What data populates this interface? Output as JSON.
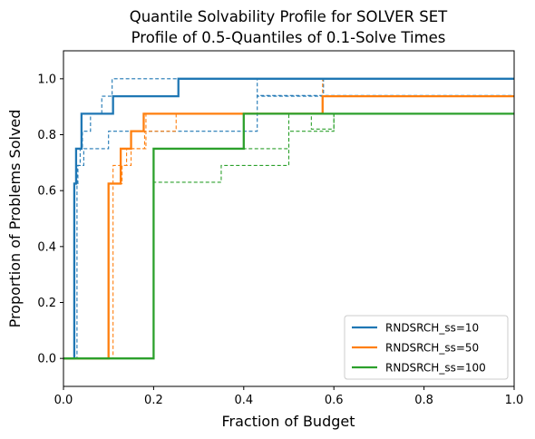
{
  "chart_data": {
    "type": "line",
    "title": "Quantile Solvability Profile for SOLVER SET",
    "subtitle": "Profile of 0.5-Quantiles of 0.1-Solve Times",
    "xlabel": "Fraction of Budget",
    "ylabel": "Proportion of Problems Solved",
    "xlim": [
      0,
      1
    ],
    "ylim": [
      -0.1,
      1.1
    ],
    "xticks": [
      0,
      0.2,
      0.4,
      0.6,
      0.8,
      1.0
    ],
    "xtick_labels": [
      "0.0",
      "0.2",
      "0.4",
      "0.6",
      "0.8",
      "1.0"
    ],
    "yticks": [
      0,
      0.2,
      0.4,
      0.6,
      0.8,
      1.0
    ],
    "ytick_labels": [
      "0.0",
      "0.2",
      "0.4",
      "0.6",
      "0.8",
      "1.0"
    ],
    "grid": false,
    "legend_position": "lower-right",
    "step": true,
    "series": [
      {
        "name": "RNDSRCH_ss=10",
        "color": "#1f77b4",
        "style": "solid",
        "x": [
          0,
          0.024,
          0.028,
          0.04,
          0.11,
          0.255,
          1.0
        ],
        "y": [
          0,
          0.625,
          0.75,
          0.875,
          0.9375,
          1.0,
          1.0
        ]
      },
      {
        "name": "",
        "color": "#1f77b4",
        "style": "dashed",
        "x": [
          0,
          0.024,
          0.032,
          0.037,
          0.042,
          0.06,
          0.065,
          0.085,
          0.108,
          0.43,
          0.577,
          1.0
        ],
        "y": [
          0,
          0.625,
          0.69,
          0.75,
          0.8125,
          0.875,
          0.875,
          0.9375,
          1.0,
          0.9375,
          1.0,
          1.0
        ]
      },
      {
        "name": "",
        "color": "#1f77b4",
        "style": "dashed",
        "x": [
          0,
          0.03,
          0.045,
          0.1,
          0.43,
          0.5,
          1.0
        ],
        "y": [
          0,
          0.69,
          0.75,
          0.8125,
          0.94,
          0.94,
          0.94
        ]
      },
      {
        "name": "RNDSRCH_ss=50",
        "color": "#ff7f0e",
        "style": "solid",
        "x": [
          0,
          0.1,
          0.127,
          0.15,
          0.178,
          0.575,
          1.0
        ],
        "y": [
          0,
          0.625,
          0.75,
          0.8125,
          0.875,
          0.9375,
          0.9375
        ]
      },
      {
        "name": "",
        "color": "#ff7f0e",
        "style": "dashed",
        "x": [
          0,
          0.1,
          0.13,
          0.14,
          0.15,
          0.18,
          0.225,
          0.25,
          0.575,
          1.0
        ],
        "y": [
          0,
          0.625,
          0.69,
          0.75,
          0.75,
          0.8125,
          0.8125,
          0.875,
          0.9375,
          0.9375
        ]
      },
      {
        "name": "",
        "color": "#ff7f0e",
        "style": "dashed",
        "x": [
          0,
          0.11,
          0.15,
          0.183,
          0.575,
          1.0
        ],
        "y": [
          0,
          0.69,
          0.75,
          0.875,
          1.0,
          1.0
        ]
      },
      {
        "name": "RNDSRCH_ss=100",
        "color": "#2ca02c",
        "style": "solid",
        "x": [
          0,
          0.2,
          0.4,
          1.0
        ],
        "y": [
          0,
          0.75,
          0.875,
          0.875
        ]
      },
      {
        "name": "",
        "color": "#2ca02c",
        "style": "dashed",
        "x": [
          0,
          0.2,
          0.35,
          0.5,
          0.6,
          1.0
        ],
        "y": [
          0,
          0.63,
          0.69,
          0.8125,
          0.875,
          0.875
        ]
      },
      {
        "name": "",
        "color": "#2ca02c",
        "style": "dashed",
        "x": [
          0,
          0.2,
          0.5,
          0.55,
          0.6,
          1.0
        ],
        "y": [
          0,
          0.75,
          0.875,
          0.82,
          0.875,
          0.875
        ]
      }
    ]
  }
}
